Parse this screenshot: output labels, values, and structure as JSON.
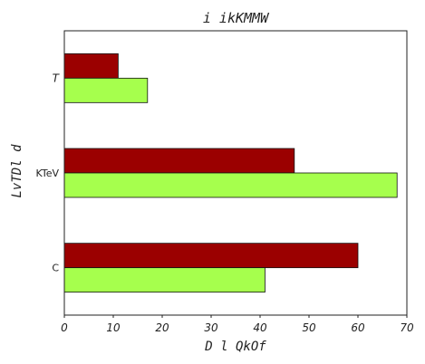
{
  "chart_data": {
    "type": "bar",
    "orientation": "horizontal",
    "title": "i ikKMMW",
    "xlabel": "D  l  QkOf",
    "ylabel": "LvTDl d",
    "categories": [
      "C",
      "KTeV",
      "T"
    ],
    "category_italic": [
      false,
      false,
      true
    ],
    "series": [
      {
        "color": "#9b0000",
        "values": [
          60,
          47,
          11
        ]
      },
      {
        "color": "#a6ff4d",
        "values": [
          41,
          68,
          17
        ]
      }
    ],
    "xlim": [
      0,
      70
    ],
    "xticks": [
      0,
      10,
      20,
      30,
      40,
      50,
      60,
      70
    ],
    "grid": false,
    "legend": false
  }
}
